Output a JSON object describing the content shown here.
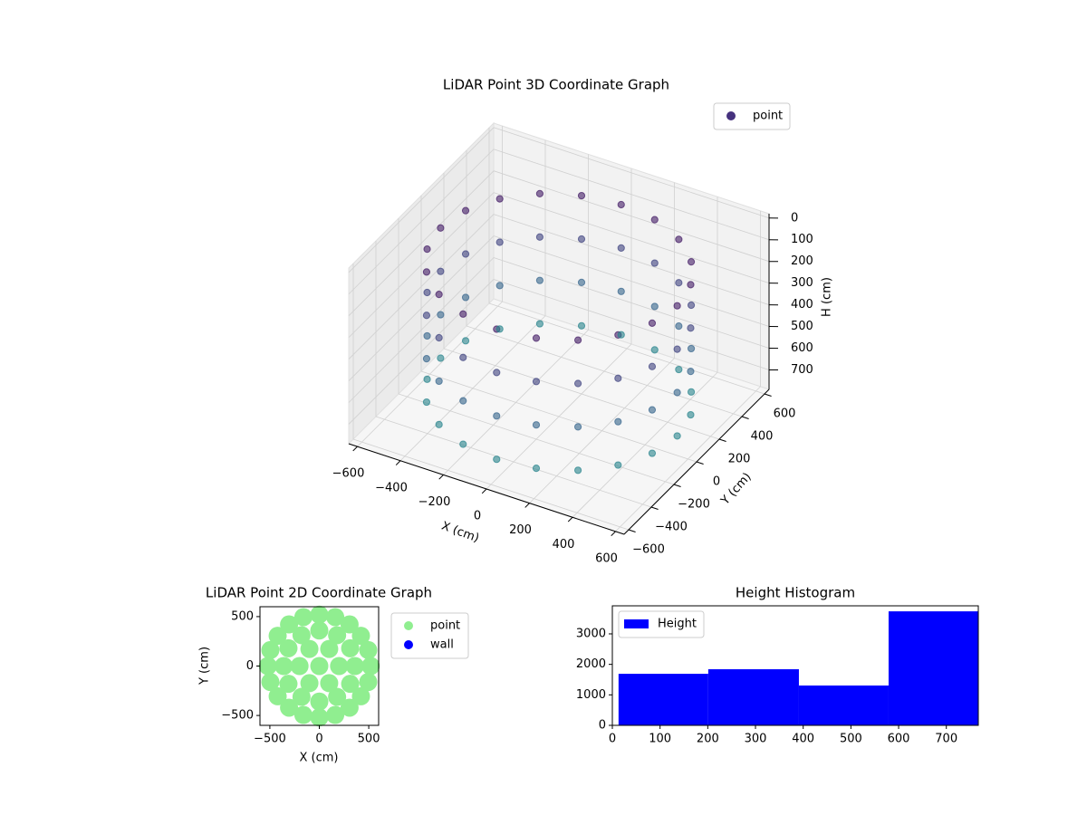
{
  "chart_data": [
    {
      "type": "scatter3d",
      "title": "LiDAR Point 3D Coordinate Graph",
      "xlabel": "X (cm)",
      "ylabel": "Y (cm)",
      "zlabel": "H (cm)",
      "legend_loc": "upper right",
      "grid": true,
      "xlim": [
        -640,
        640
      ],
      "ylim": [
        -640,
        640
      ],
      "zlim": [
        790,
        -20
      ],
      "xticks": [
        {
          "value": -600,
          "label": "−600"
        },
        {
          "value": -400,
          "label": "−400"
        },
        {
          "value": -200,
          "label": "−200"
        },
        0,
        200,
        400,
        600
      ],
      "yticks": [
        {
          "value": -600,
          "label": "−600"
        },
        {
          "value": -400,
          "label": "−400"
        },
        {
          "value": -200,
          "label": "−200"
        },
        0,
        200,
        400,
        600
      ],
      "zticks": [
        0,
        100,
        200,
        300,
        400,
        500,
        600,
        700
      ],
      "series": [
        {
          "name": "point",
          "color": "#46327e",
          "colormap": [
            "#440154",
            "#3b528b",
            "#21918c"
          ],
          "x": [
            550,
            523,
            445,
            323,
            170,
            0,
            -170,
            -323,
            -445,
            -523,
            -550,
            -523,
            -445,
            -323,
            -170,
            0,
            170,
            323,
            445,
            523,
            550,
            523,
            445,
            323,
            170,
            0,
            -170,
            -323,
            -445,
            -523,
            -550,
            -523,
            -445,
            -323,
            -170,
            0,
            170,
            323,
            445,
            523,
            550,
            523,
            445,
            323,
            170,
            0,
            -170,
            -323,
            -445,
            -523,
            -550,
            -523,
            -445,
            -323,
            -170,
            0,
            170,
            323,
            445,
            523,
            550,
            523,
            445,
            323,
            170,
            0,
            -170,
            -323,
            -445,
            -523,
            -550,
            -523,
            -445,
            -323,
            -170,
            0,
            170,
            323,
            445,
            523
          ],
          "y": [
            0,
            170,
            323,
            445,
            523,
            550,
            523,
            445,
            323,
            170,
            0,
            -170,
            -323,
            -445,
            -523,
            -550,
            -523,
            -445,
            -323,
            -170,
            0,
            170,
            323,
            445,
            523,
            550,
            523,
            445,
            323,
            170,
            0,
            -170,
            -323,
            -445,
            -523,
            -550,
            -523,
            -445,
            -323,
            -170,
            0,
            170,
            323,
            445,
            523,
            550,
            523,
            445,
            323,
            170,
            0,
            -170,
            -323,
            -445,
            -523,
            -550,
            -523,
            -445,
            -323,
            -170,
            0,
            170,
            323,
            445,
            523,
            550,
            523,
            445,
            323,
            170,
            0,
            -170,
            -323,
            -445,
            -523,
            -550,
            -523,
            -445,
            -323,
            -170
          ],
          "z": [
            100,
            100,
            100,
            100,
            100,
            100,
            100,
            100,
            100,
            100,
            100,
            100,
            100,
            100,
            100,
            100,
            100,
            100,
            100,
            100,
            300,
            300,
            300,
            300,
            300,
            300,
            300,
            300,
            300,
            300,
            300,
            300,
            300,
            300,
            300,
            300,
            300,
            300,
            300,
            300,
            500,
            500,
            500,
            500,
            500,
            500,
            500,
            500,
            500,
            500,
            500,
            500,
            500,
            500,
            500,
            500,
            500,
            500,
            500,
            500,
            700,
            700,
            700,
            700,
            700,
            700,
            700,
            700,
            700,
            700,
            700,
            700,
            700,
            700,
            700,
            700,
            700,
            700,
            700,
            700
          ]
        }
      ]
    },
    {
      "type": "scatter",
      "title": "LiDAR Point 2D Coordinate Graph",
      "xlabel": "X (cm)",
      "ylabel": "Y (cm)",
      "legend_loc": "outside upper right",
      "xlim": [
        -600,
        600
      ],
      "ylim": [
        -600,
        600
      ],
      "xticks": [
        {
          "value": -500,
          "label": "−500"
        },
        0,
        500
      ],
      "yticks": [
        {
          "value": -500,
          "label": "−500"
        },
        0,
        500
      ],
      "series": [
        {
          "name": "point",
          "color": "#90ee90",
          "x": [
            520,
            495,
            421,
            306,
            161,
            0,
            -161,
            -306,
            -421,
            -495,
            -520,
            -495,
            -421,
            -306,
            -161,
            0,
            161,
            306,
            421,
            495,
            360,
            312,
            180,
            0,
            -180,
            -312,
            -360,
            -312,
            -180,
            0,
            180,
            312,
            200,
            100,
            -100,
            -200,
            -100,
            100,
            0
          ],
          "y": [
            0,
            161,
            306,
            421,
            495,
            520,
            495,
            421,
            306,
            161,
            0,
            -161,
            -306,
            -421,
            -495,
            -520,
            -495,
            -421,
            -306,
            -161,
            0,
            180,
            312,
            360,
            312,
            180,
            0,
            -180,
            -312,
            -360,
            -312,
            -180,
            0,
            173,
            173,
            0,
            -173,
            -173,
            0
          ]
        },
        {
          "name": "wall",
          "color": "#0000ff",
          "x": [],
          "y": []
        }
      ]
    },
    {
      "type": "histogram",
      "title": "Height Histogram",
      "legend_loc": "upper left",
      "xlim": [
        0,
        767
      ],
      "ylim": [
        0,
        3920
      ],
      "xticks": [
        0,
        100,
        200,
        300,
        400,
        500,
        600,
        700
      ],
      "yticks": [
        0,
        1000,
        2000,
        3000
      ],
      "series": [
        {
          "name": "Height",
          "color": "#0000ff",
          "bins": [
            13,
            201,
            391,
            579,
            767
          ],
          "counts": [
            1690,
            1840,
            1306,
            3739
          ]
        }
      ]
    }
  ]
}
